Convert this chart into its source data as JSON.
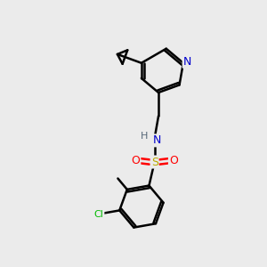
{
  "bg_color": "#ebebeb",
  "atom_colors": {
    "N": "#0000cc",
    "O": "#ff0000",
    "S": "#bbaa00",
    "Cl": "#00bb00",
    "C": "#000000",
    "H": "#556677"
  },
  "bond_color": "#000000",
  "lw": 1.8
}
